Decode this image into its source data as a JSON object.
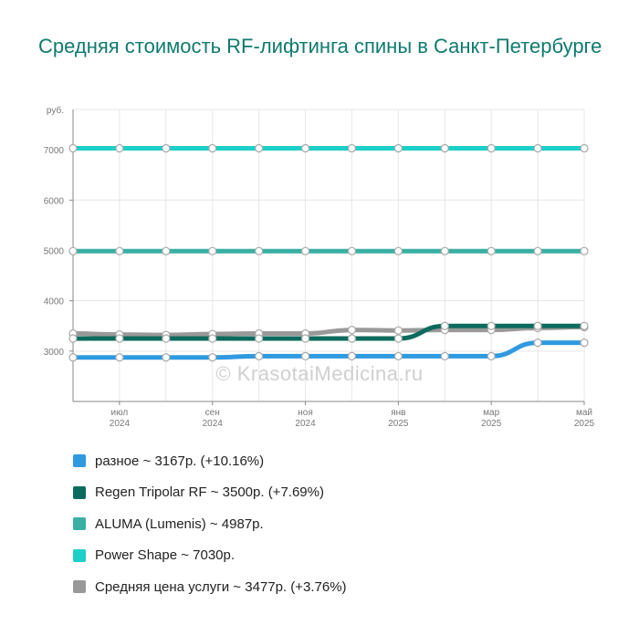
{
  "title": "Средняя стоимость RF-лифтинга спины в Санкт-Петербурге",
  "watermark": "© KrasotaiMedicina.ru",
  "chart_data": {
    "type": "line",
    "ylabel": "руб.",
    "ylim": [
      2000,
      7800
    ],
    "y_ticks": [
      3000,
      4000,
      5000,
      6000,
      7000
    ],
    "x": [
      0,
      1,
      2,
      3,
      4,
      5,
      6,
      7,
      8,
      9,
      10,
      11
    ],
    "x_ticks": [
      {
        "index": 1,
        "line1": "июл",
        "line2": "2024"
      },
      {
        "index": 3,
        "line1": "сен",
        "line2": "2024"
      },
      {
        "index": 5,
        "line1": "ноя",
        "line2": "2024"
      },
      {
        "index": 7,
        "line1": "янв",
        "line2": "2025"
      },
      {
        "index": 9,
        "line1": "мар",
        "line2": "2025"
      },
      {
        "index": 11,
        "line1": "май",
        "line2": "2025"
      }
    ],
    "series": [
      {
        "name": "Power Shape",
        "color": "#1ccfc9",
        "values": [
          7030,
          7030,
          7030,
          7030,
          7030,
          7030,
          7030,
          7030,
          7030,
          7030,
          7030,
          7030
        ]
      },
      {
        "name": "ALUMA (Lumenis)",
        "color": "#3aafa3",
        "values": [
          4987,
          4987,
          4987,
          4987,
          4987,
          4987,
          4987,
          4987,
          4987,
          4987,
          4987,
          4987
        ]
      },
      {
        "name": "Средняя цена услуги",
        "color": "#999999",
        "values": [
          3350,
          3330,
          3320,
          3340,
          3350,
          3350,
          3420,
          3410,
          3420,
          3420,
          3460,
          3477
        ]
      },
      {
        "name": "Regen Tripolar RF",
        "color": "#0c6b5e",
        "values": [
          3250,
          3250,
          3250,
          3250,
          3250,
          3250,
          3250,
          3250,
          3500,
          3500,
          3500,
          3500
        ]
      },
      {
        "name": "разное",
        "color": "#2f9ae0",
        "values": [
          2875,
          2875,
          2875,
          2875,
          2900,
          2900,
          2900,
          2900,
          2900,
          2900,
          3167,
          3167
        ]
      }
    ]
  },
  "legend": [
    {
      "label": "разное ~ 3167р. (+10.16%)",
      "color": "#2f9ae0"
    },
    {
      "label": "Regen Tripolar RF ~ 3500р. (+7.69%)",
      "color": "#0c6b5e"
    },
    {
      "label": "ALUMA (Lumenis) ~ 4987р.",
      "color": "#3aafa3"
    },
    {
      "label": "Power Shape ~ 7030р.",
      "color": "#1ccfc9"
    },
    {
      "label": "Средняя цена услуги ~ 3477р. (+3.76%)",
      "color": "#999999"
    }
  ]
}
